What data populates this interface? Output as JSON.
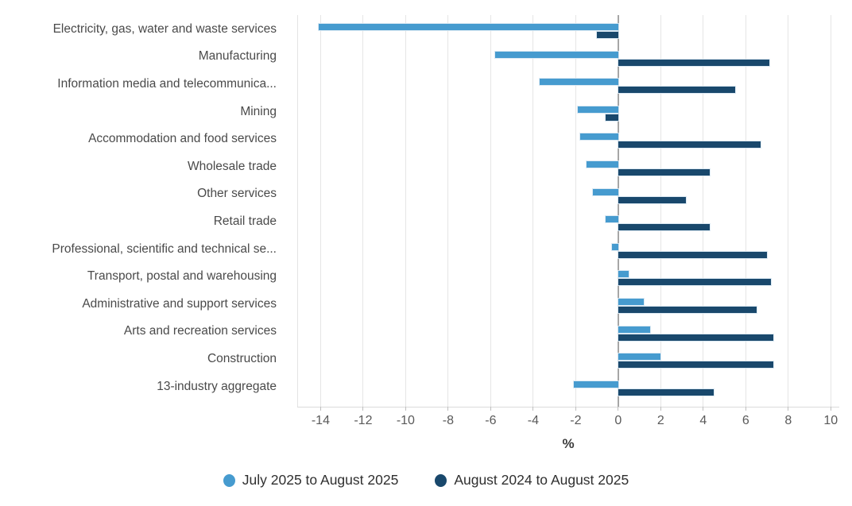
{
  "chart_data": {
    "type": "bar",
    "orientation": "horizontal",
    "title": "",
    "categories": [
      "Electricity, gas, water and waste services",
      "Manufacturing",
      "Information media and telecommunica...",
      "Mining",
      "Accommodation and food services",
      "Wholesale trade",
      "Other services",
      "Retail trade",
      "Professional, scientific and technical se...",
      "Transport, postal and warehousing",
      "Administrative and support services",
      "Arts and recreation services",
      "Construction",
      "13-industry aggregate"
    ],
    "series": [
      {
        "name": "July 2025 to August 2025",
        "color": "#469BCF",
        "values": [
          -14.1,
          -5.8,
          -3.7,
          -1.9,
          -1.8,
          -1.5,
          -1.2,
          -0.6,
          -0.3,
          0.5,
          1.2,
          1.5,
          2.0,
          -2.1
        ]
      },
      {
        "name": "August 2024 to August 2025",
        "color": "#19486C",
        "values": [
          -1.0,
          7.1,
          5.5,
          -0.6,
          6.7,
          4.3,
          3.2,
          4.3,
          7.0,
          7.2,
          6.5,
          7.3,
          7.3,
          4.5
        ]
      }
    ],
    "xlabel": "%",
    "xticks": [
      -14,
      -12,
      -10,
      -8,
      -6,
      -4,
      -2,
      0,
      2,
      4,
      6,
      8,
      10
    ],
    "xlim": [
      -15.1,
      10.4
    ],
    "grid": true,
    "legend_position": "bottom"
  },
  "legend": {
    "items": [
      {
        "label": "July 2025 to August 2025",
        "color": "#469BCF"
      },
      {
        "label": "August 2024 to August 2025",
        "color": "#19486C"
      }
    ]
  },
  "colors": {
    "series1": "#469BCF",
    "series2": "#19486C",
    "gridline": "#E5E5E5",
    "zero_line": "#A6A6A6",
    "axis_line": "#DBDBDB",
    "category_text": "#4A4A4A",
    "tick_text": "#5A5A5A"
  }
}
